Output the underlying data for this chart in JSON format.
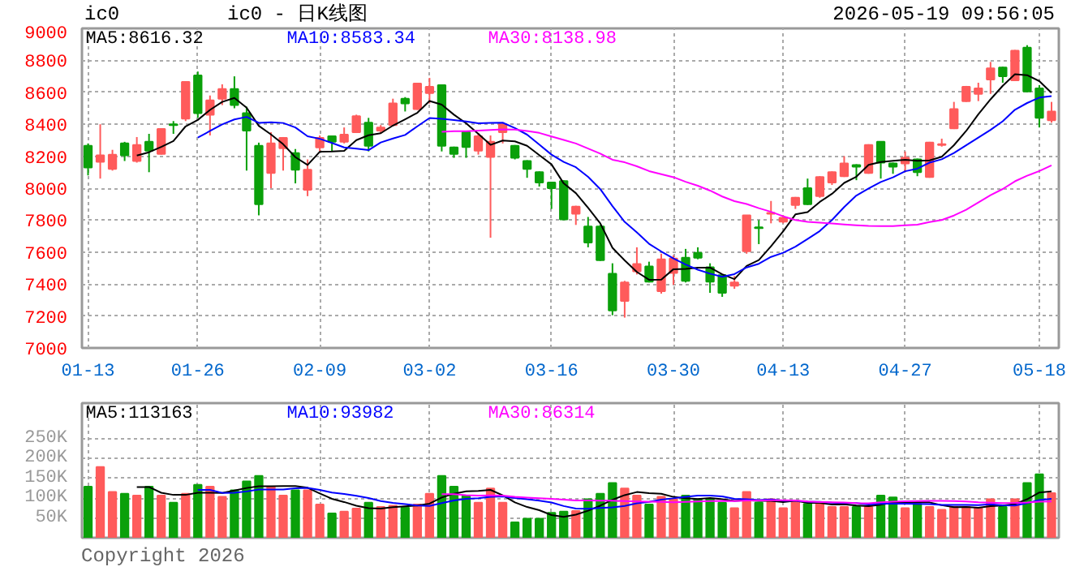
{
  "chart_data": [
    {
      "type": "candlestick",
      "title": "ic0 - 日K线图",
      "subtitle": "2026-05-19 09:56:05",
      "annotations": [
        "ic0"
      ],
      "categories": [
        "01-13",
        null,
        null,
        null,
        null,
        null,
        null,
        null,
        null,
        "01-26",
        null,
        null,
        null,
        null,
        null,
        null,
        null,
        null,
        null,
        "02-09",
        null,
        null,
        null,
        null,
        null,
        null,
        null,
        null,
        "03-02",
        null,
        null,
        null,
        null,
        null,
        null,
        null,
        null,
        null,
        "03-16",
        null,
        null,
        null,
        null,
        null,
        null,
        null,
        null,
        null,
        "03-30",
        null,
        null,
        null,
        null,
        null,
        null,
        null,
        null,
        "04-13",
        null,
        null,
        null,
        null,
        null,
        null,
        null,
        null,
        null,
        "04-27",
        null,
        null,
        null,
        null,
        null,
        null,
        null,
        null,
        null,
        null,
        "05-18",
        null
      ],
      "ohlc": [
        [
          8265,
          8280,
          8080,
          8130
        ],
        [
          8165,
          8400,
          8060,
          8205
        ],
        [
          8120,
          8240,
          8110,
          8210
        ],
        [
          8280,
          8290,
          8170,
          8205
        ],
        [
          8170,
          8320,
          8160,
          8270
        ],
        [
          8290,
          8340,
          8100,
          8235
        ],
        [
          8215,
          8370,
          8210,
          8370
        ],
        [
          8400,
          8420,
          8340,
          8395
        ],
        [
          8435,
          8665,
          8420,
          8665
        ],
        [
          8705,
          8730,
          8440,
          8470
        ],
        [
          8460,
          8580,
          8330,
          8550
        ],
        [
          8560,
          8650,
          8520,
          8620
        ],
        [
          8620,
          8700,
          8500,
          8520
        ],
        [
          8470,
          8510,
          8110,
          8360
        ],
        [
          8265,
          8285,
          7830,
          7900
        ],
        [
          8095,
          8350,
          8000,
          8280
        ],
        [
          8250,
          8320,
          8110,
          8315
        ],
        [
          8220,
          8245,
          8030,
          8115
        ],
        [
          7990,
          8180,
          7950,
          8115
        ],
        [
          8255,
          8330,
          8230,
          8315
        ],
        [
          8325,
          8330,
          8230,
          8290
        ],
        [
          8290,
          8380,
          8280,
          8335
        ],
        [
          8350,
          8460,
          8345,
          8450
        ],
        [
          8410,
          8440,
          8230,
          8265
        ],
        [
          8360,
          8395,
          8340,
          8380
        ],
        [
          8395,
          8560,
          8390,
          8530
        ],
        [
          8560,
          8570,
          8480,
          8530
        ],
        [
          8495,
          8655,
          8490,
          8655
        ],
        [
          8595,
          8690,
          8530,
          8635
        ],
        [
          8645,
          8645,
          8230,
          8265
        ],
        [
          8255,
          8260,
          8190,
          8215
        ],
        [
          8350,
          8360,
          8190,
          8258
        ],
        [
          8235,
          8345,
          8210,
          8325
        ],
        [
          8195,
          8330,
          7690,
          8290
        ],
        [
          8350,
          8410,
          8280,
          8400
        ],
        [
          8265,
          8270,
          8180,
          8190
        ],
        [
          8170,
          8175,
          8065,
          8120
        ],
        [
          8100,
          8105,
          8010,
          8035
        ],
        [
          8035,
          8040,
          7870,
          8000
        ],
        [
          8045,
          8050,
          7800,
          7805
        ],
        [
          7840,
          7890,
          7770,
          7885
        ],
        [
          7760,
          7820,
          7630,
          7660
        ],
        [
          7760,
          7770,
          7545,
          7550
        ],
        [
          7465,
          7530,
          7205,
          7235
        ],
        [
          7295,
          7420,
          7190,
          7410
        ],
        [
          7480,
          7630,
          7460,
          7525
        ],
        [
          7510,
          7540,
          7410,
          7415
        ],
        [
          7355,
          7590,
          7340,
          7555
        ],
        [
          7470,
          7580,
          7395,
          7560
        ],
        [
          7565,
          7620,
          7410,
          7420
        ],
        [
          7595,
          7630,
          7555,
          7565
        ],
        [
          7505,
          7530,
          7345,
          7415
        ],
        [
          7455,
          7460,
          7320,
          7345
        ],
        [
          7390,
          7450,
          7370,
          7410
        ],
        [
          7605,
          7830,
          7590,
          7830
        ],
        [
          7755,
          7800,
          7650,
          7750
        ],
        [
          7840,
          7920,
          7780,
          7845
        ],
        [
          7790,
          7830,
          7780,
          7815
        ],
        [
          7895,
          7945,
          7870,
          7940
        ],
        [
          8000,
          8060,
          7895,
          7900
        ],
        [
          7950,
          8075,
          7940,
          8070
        ],
        [
          8035,
          8105,
          8020,
          8100
        ],
        [
          8075,
          8200,
          8070,
          8155
        ],
        [
          8145,
          8150,
          8050,
          8135
        ],
        [
          8095,
          8275,
          8090,
          8270
        ],
        [
          8290,
          8290,
          8060,
          8160
        ],
        [
          8155,
          8160,
          8090,
          8135
        ],
        [
          8155,
          8230,
          8100,
          8190
        ],
        [
          8180,
          8185,
          8075,
          8100
        ],
        [
          8070,
          8290,
          8065,
          8285
        ],
        [
          8270,
          8310,
          8260,
          8275
        ],
        [
          8375,
          8540,
          8370,
          8495
        ],
        [
          8545,
          8640,
          8540,
          8635
        ],
        [
          8590,
          8660,
          8545,
          8625
        ],
        [
          8680,
          8790,
          8590,
          8750
        ],
        [
          8755,
          8760,
          8660,
          8700
        ],
        [
          8675,
          8865,
          8670,
          8860
        ],
        [
          8880,
          8895,
          8600,
          8605
        ],
        [
          8625,
          8645,
          8380,
          8440
        ],
        [
          8425,
          8540,
          8410,
          8480
        ]
      ],
      "colors": [
        "#0aa00a",
        "#ff5b5b",
        "#ff5b5b",
        "#0aa00a",
        "#ff5b5b",
        "#0aa00a",
        "#ff5b5b",
        "#0aa00a",
        "#ff5b5b",
        "#0aa00a",
        "#ff5b5b",
        "#ff5b5b",
        "#0aa00a",
        "#0aa00a",
        "#0aa00a",
        "#ff5b5b",
        "#ff5b5b",
        "#0aa00a",
        "#ff5b5b",
        "#ff5b5b",
        "#0aa00a",
        "#ff5b5b",
        "#ff5b5b",
        "#0aa00a",
        "#ff5b5b",
        "#ff5b5b",
        "#0aa00a",
        "#ff5b5b",
        "#ff5b5b",
        "#0aa00a",
        "#0aa00a",
        "#0aa00a",
        "#ff5b5b",
        "#ff5b5b",
        "#ff5b5b",
        "#0aa00a",
        "#0aa00a",
        "#0aa00a",
        "#0aa00a",
        "#0aa00a",
        "#ff5b5b",
        "#0aa00a",
        "#0aa00a",
        "#0aa00a",
        "#ff5b5b",
        "#ff5b5b",
        "#0aa00a",
        "#ff5b5b",
        "#ff5b5b",
        "#0aa00a",
        "#0aa00a",
        "#0aa00a",
        "#0aa00a",
        "#ff5b5b",
        "#ff5b5b",
        "#0aa00a",
        "#ff5b5b",
        "#ff5b5b",
        "#ff5b5b",
        "#0aa00a",
        "#ff5b5b",
        "#ff5b5b",
        "#ff5b5b",
        "#0aa00a",
        "#ff5b5b",
        "#0aa00a",
        "#0aa00a",
        "#ff5b5b",
        "#0aa00a",
        "#ff5b5b",
        "#ff5b5b",
        "#ff5b5b",
        "#ff5b5b",
        "#ff5b5b",
        "#ff5b5b",
        "#0aa00a",
        "#ff5b5b",
        "#0aa00a",
        "#0aa00a",
        "#ff5b5b"
      ],
      "series": [
        {
          "type": "line",
          "name": "MA5:8616.32",
          "color": "#000000",
          "values": [
            null,
            null,
            null,
            null,
            8204,
            8225,
            8258,
            8295,
            8387,
            8427,
            8490,
            8540,
            8565,
            8504,
            8390,
            8336,
            8275,
            8194,
            8145,
            8228,
            8230,
            8234,
            8301,
            8331,
            8344,
            8392,
            8431,
            8472,
            8546,
            8523,
            8460,
            8406,
            8340,
            8271,
            8298,
            8293,
            8265,
            8207,
            8149,
            8030,
            7969,
            7877,
            7780,
            7627,
            7548,
            7476,
            7427,
            7428,
            7493,
            7495,
            7503,
            7503,
            7461,
            7431,
            7513,
            7550,
            7636,
            7730,
            7836,
            7850,
            7914,
            7965,
            8033,
            8072,
            8146,
            8164,
            8171,
            8178,
            8171,
            8174,
            8197,
            8269,
            8358,
            8463,
            8556,
            8641,
            8713,
            8707,
            8670,
            8596
          ]
        },
        {
          "type": "line",
          "name": "MA10:8583.34",
          "color": "#0000ff",
          "values": [
            null,
            null,
            null,
            null,
            null,
            null,
            null,
            null,
            null,
            8316,
            8358,
            8399,
            8430,
            8446,
            8409,
            8413,
            8408,
            8380,
            8325,
            8309,
            8283,
            8255,
            8248,
            8238,
            8286,
            8311,
            8333,
            8387,
            8439,
            8434,
            8426,
            8418,
            8406,
            8408,
            8410,
            8376,
            8335,
            8273,
            8210,
            8164,
            8131,
            8071,
            7994,
            7888,
            7789,
            7723,
            7652,
            7604,
            7560,
            7522,
            7490,
            7465,
            7445,
            7462,
            7504,
            7527,
            7570,
            7596,
            7634,
            7682,
            7732,
            7801,
            7882,
            7954,
            7998,
            8039,
            8068,
            8106,
            8122,
            8160,
            8181,
            8220,
            8268,
            8317,
            8365,
            8419,
            8491,
            8533,
            8567,
            8576
          ]
        },
        {
          "type": "line",
          "name": "MA30:8138.98",
          "color": "#ff00ff",
          "values": [
            null,
            null,
            null,
            null,
            null,
            null,
            null,
            null,
            null,
            null,
            null,
            null,
            null,
            null,
            null,
            null,
            null,
            null,
            null,
            null,
            null,
            null,
            null,
            null,
            null,
            null,
            null,
            null,
            null,
            8353,
            8356,
            8357,
            8361,
            8364,
            8368,
            8367,
            8358,
            8346,
            8324,
            8302,
            8280,
            8248,
            8216,
            8178,
            8162,
            8137,
            8107,
            8088,
            8069,
            8040,
            8015,
            7985,
            7948,
            7919,
            7901,
            7875,
            7852,
            7824,
            7801,
            7789,
            7784,
            7779,
            7773,
            7768,
            7764,
            7763,
            7763,
            7768,
            7772,
            7788,
            7801,
            7829,
            7865,
            7911,
            7956,
            7995,
            8043,
            8078,
            8107,
            8143
          ]
        }
      ],
      "ylim": [
        7000,
        9000
      ],
      "yticks": [
        7000,
        7200,
        7400,
        7600,
        7800,
        8000,
        8200,
        8400,
        8600,
        8800,
        9000
      ],
      "grid": true,
      "legend": "top left"
    },
    {
      "type": "bar",
      "annotations": [
        "Copyright 2026"
      ],
      "categories": [
        null,
        null,
        null,
        null,
        null,
        null,
        null,
        null,
        null,
        null,
        null,
        null,
        null,
        null,
        null,
        null,
        null,
        null,
        null,
        null,
        null,
        null,
        null,
        null,
        null,
        null,
        null,
        null,
        null,
        null,
        null,
        null,
        null,
        null,
        null,
        null,
        null,
        null,
        null,
        null,
        null,
        null,
        null,
        null,
        null,
        null,
        null,
        null,
        null,
        null,
        null,
        null,
        null,
        null,
        null,
        null,
        null,
        null,
        null,
        null,
        null,
        null,
        null,
        null,
        null,
        null,
        null,
        null,
        null,
        null,
        null,
        null,
        null,
        null,
        null,
        null,
        null,
        null,
        null,
        null
      ],
      "values": [
        129000,
        178500,
        115500,
        111000,
        106500,
        129000,
        106500,
        88500,
        111000,
        133500,
        129000,
        103500,
        120000,
        142500,
        156000,
        129000,
        106500,
        120000,
        120000,
        84000,
        61500,
        66000,
        73500,
        88500,
        78000,
        81000,
        76500,
        84000,
        111000,
        156000,
        129000,
        106500,
        88500,
        124500,
        88500,
        39000,
        48000,
        48000,
        63000,
        66000,
        67500,
        97500,
        111000,
        138000,
        124500,
        106500,
        84000,
        103500,
        97500,
        106500,
        97500,
        97500,
        88500,
        75000,
        115500,
        88500,
        97500,
        75000,
        93000,
        85500,
        88500,
        78000,
        78000,
        78000,
        78000,
        106500,
        102000,
        75000,
        85500,
        78000,
        70500,
        78000,
        78000,
        75000,
        97500,
        78000,
        97500,
        138000,
        160500,
        112500
      ],
      "colors": [
        "#0aa00a",
        "#ff5b5b",
        "#ff5b5b",
        "#0aa00a",
        "#ff5b5b",
        "#0aa00a",
        "#ff5b5b",
        "#0aa00a",
        "#ff5b5b",
        "#0aa00a",
        "#ff5b5b",
        "#ff5b5b",
        "#0aa00a",
        "#0aa00a",
        "#0aa00a",
        "#ff5b5b",
        "#ff5b5b",
        "#0aa00a",
        "#ff5b5b",
        "#ff5b5b",
        "#0aa00a",
        "#ff5b5b",
        "#ff5b5b",
        "#0aa00a",
        "#ff5b5b",
        "#ff5b5b",
        "#0aa00a",
        "#ff5b5b",
        "#ff5b5b",
        "#0aa00a",
        "#0aa00a",
        "#0aa00a",
        "#ff5b5b",
        "#ff5b5b",
        "#ff5b5b",
        "#0aa00a",
        "#0aa00a",
        "#0aa00a",
        "#0aa00a",
        "#0aa00a",
        "#ff5b5b",
        "#0aa00a",
        "#0aa00a",
        "#0aa00a",
        "#ff5b5b",
        "#ff5b5b",
        "#0aa00a",
        "#ff5b5b",
        "#ff5b5b",
        "#0aa00a",
        "#0aa00a",
        "#0aa00a",
        "#0aa00a",
        "#ff5b5b",
        "#ff5b5b",
        "#0aa00a",
        "#ff5b5b",
        "#ff5b5b",
        "#ff5b5b",
        "#0aa00a",
        "#ff5b5b",
        "#ff5b5b",
        "#ff5b5b",
        "#0aa00a",
        "#ff5b5b",
        "#0aa00a",
        "#0aa00a",
        "#ff5b5b",
        "#0aa00a",
        "#ff5b5b",
        "#ff5b5b",
        "#ff5b5b",
        "#ff5b5b",
        "#ff5b5b",
        "#ff5b5b",
        "#0aa00a",
        "#ff5b5b",
        "#0aa00a",
        "#0aa00a",
        "#ff5b5b"
      ],
      "series": [
        {
          "type": "line",
          "name": "MA5:113163",
          "color": "#000000",
          "values": [
            null,
            null,
            null,
            null,
            128100,
            128100,
            113700,
            108300,
            108300,
            113700,
            113700,
            113100,
            119400,
            125700,
            130200,
            130200,
            130800,
            130800,
            126300,
            111900,
            98400,
            90300,
            81000,
            74700,
            73500,
            77400,
            79500,
            81600,
            86100,
            101700,
            111300,
            117300,
            118200,
            120900,
            107400,
            89400,
            77700,
            69600,
            57300,
            52800,
            58500,
            68400,
            81000,
            96000,
            107700,
            115500,
            112800,
            111300,
            103200,
            99600,
            97800,
            100500,
            97500,
            93000,
            94800,
            93000,
            93000,
            90300,
            93900,
            87900,
            87900,
            84000,
            84600,
            81600,
            80100,
            83700,
            88500,
            87900,
            89400,
            89400,
            82200,
            77400,
            78000,
            75900,
            79800,
            81300,
            85200,
            97200,
            114300,
            117300
          ]
        },
        {
          "type": "line",
          "name": "MA10:93982",
          "color": "#0000ff",
          "values": [
            null,
            null,
            null,
            null,
            null,
            null,
            null,
            null,
            null,
            120900,
            120900,
            113400,
            113850,
            117000,
            121950,
            121950,
            121950,
            125100,
            126000,
            121050,
            114300,
            110550,
            105900,
            100500,
            92700,
            87900,
            84900,
            81300,
            80400,
            87600,
            94350,
            98400,
            99900,
            103500,
            104550,
            100350,
            97500,
            93900,
            89100,
            80100,
            73950,
            73050,
            75300,
            76650,
            80250,
            87000,
            90600,
            96150,
            99600,
            103650,
            106650,
            106650,
            104400,
            98100,
            97200,
            95400,
            96750,
            93900,
            93450,
            91350,
            90450,
            88500,
            87450,
            87750,
            84000,
            85800,
            86250,
            86250,
            85500,
            84750,
            82950,
            82950,
            82950,
            82650,
            84600,
            81750,
            81300,
            87600,
            95100,
            98550
          ]
        },
        {
          "type": "line",
          "name": "MA30:86314",
          "color": "#ff00ff",
          "values": [
            null,
            null,
            null,
            null,
            null,
            null,
            null,
            null,
            null,
            null,
            null,
            null,
            null,
            null,
            null,
            null,
            null,
            null,
            null,
            null,
            null,
            null,
            null,
            null,
            null,
            null,
            null,
            null,
            null,
            109850,
            109850,
            107450,
            106550,
            107000,
            106400,
            103400,
            101450,
            100100,
            98500,
            96250,
            94200,
            94000,
            93700,
            93550,
            92500,
            91750,
            91000,
            90450,
            89700,
            90450,
            91650,
            92700,
            93200,
            92750,
            94000,
            94250,
            94950,
            94650,
            94050,
            91700,
            90350,
            89400,
            89050,
            87500,
            87150,
            89400,
            91200,
            92100,
            92850,
            93250,
            93350,
            92700,
            91600,
            89500,
            88600,
            87650,
            88100,
            89250,
            91350,
            91550
          ]
        }
      ],
      "ylim": [
        0,
        340000
      ],
      "yticks": [
        {
          "value": 50000,
          "label": "50K"
        },
        {
          "value": 100000,
          "label": "100K"
        },
        {
          "value": 150000,
          "label": "150K"
        },
        {
          "value": 200000,
          "label": "200K"
        },
        {
          "value": 250000,
          "label": "250K"
        }
      ],
      "grid": true,
      "legend": "top left"
    }
  ]
}
